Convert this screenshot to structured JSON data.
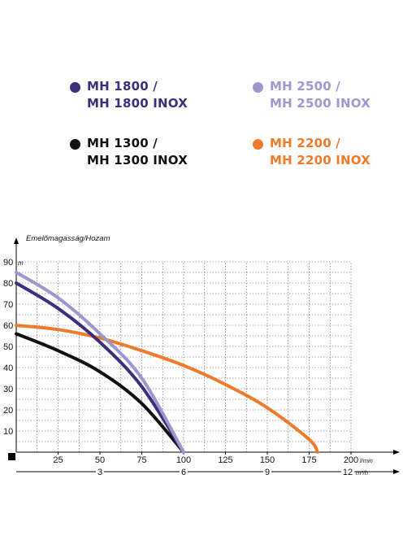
{
  "legend": [
    {
      "line1": "MH 1800 /",
      "line2": "MH 1800 INOX",
      "color": "#3d2e7c"
    },
    {
      "line1": "MH 2500 /",
      "line2": "MH 2500 INOX",
      "color": "#9e97cf"
    },
    {
      "line1": "MH 1300 /",
      "line2": "MH 1300 INOX",
      "color": "#111111"
    },
    {
      "line1": "MH 2200 /",
      "line2": "MH 2200 INOX",
      "color": "#ee7a2c"
    }
  ],
  "chart_data": {
    "type": "line",
    "ylabel": "Emelőmagasság/Hozam",
    "y_unit": "m",
    "x_unit": "l/min",
    "x2_unit": "m³/h",
    "xlim": [
      0,
      200
    ],
    "ylim": [
      0,
      90
    ],
    "x_ticks": [
      25,
      50,
      75,
      100,
      125,
      150,
      175,
      200
    ],
    "y_ticks": [
      10,
      20,
      30,
      40,
      50,
      60,
      70,
      80,
      90
    ],
    "x2_ticks": [
      {
        "label": "3",
        "at_lmin": 50
      },
      {
        "label": "6",
        "at_lmin": 100
      },
      {
        "label": "9",
        "at_lmin": 150
      },
      {
        "label": "12",
        "at_lmin": 200
      }
    ],
    "grid": true,
    "series": [
      {
        "name": "MH 1300 / MH 1300 INOX",
        "color": "#111111",
        "x": [
          0,
          25,
          50,
          75,
          100
        ],
        "y": [
          56,
          48,
          38,
          23,
          0
        ]
      },
      {
        "name": "MH 1800 / MH 1800 INOX",
        "color": "#3d2e7c",
        "x": [
          0,
          25,
          50,
          75,
          100
        ],
        "y": [
          80,
          68,
          52,
          31,
          0
        ]
      },
      {
        "name": "MH 2500 / MH 2500 INOX",
        "color": "#9e97cf",
        "x": [
          0,
          25,
          50,
          75,
          100
        ],
        "y": [
          85,
          73,
          56,
          35,
          0
        ]
      },
      {
        "name": "MH 2200 / MH 2200 INOX",
        "color": "#ee7a2c",
        "x": [
          0,
          25,
          50,
          75,
          100,
          125,
          150,
          175,
          180
        ],
        "y": [
          60,
          58,
          54,
          48,
          41,
          32,
          21,
          6,
          0
        ]
      }
    ]
  }
}
